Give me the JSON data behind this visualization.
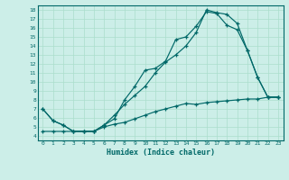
{
  "xlabel": "Humidex (Indice chaleur)",
  "bg_color": "#cceee8",
  "line_color": "#006868",
  "grid_color": "#aaddcc",
  "xlim": [
    -0.5,
    23.5
  ],
  "ylim": [
    3.5,
    18.5
  ],
  "xticks": [
    0,
    1,
    2,
    3,
    4,
    5,
    6,
    7,
    8,
    9,
    10,
    11,
    12,
    13,
    14,
    15,
    16,
    17,
    18,
    19,
    20,
    21,
    22,
    23
  ],
  "yticks": [
    4,
    5,
    6,
    7,
    8,
    9,
    10,
    11,
    12,
    13,
    14,
    15,
    16,
    17,
    18
  ],
  "line1_x": [
    0,
    1,
    2,
    3,
    4,
    5,
    6,
    7,
    8,
    9,
    10,
    11,
    12,
    13,
    14,
    15,
    16,
    17,
    18,
    19,
    20,
    21,
    22,
    23
  ],
  "line1_y": [
    7.0,
    5.7,
    5.2,
    4.5,
    4.5,
    4.5,
    5.2,
    6.3,
    7.5,
    8.5,
    9.5,
    11.0,
    12.2,
    13.0,
    14.0,
    15.5,
    18.0,
    17.7,
    17.5,
    16.5,
    13.5,
    10.5,
    8.3,
    8.3
  ],
  "line2_x": [
    0,
    1,
    2,
    3,
    4,
    5,
    6,
    7,
    8,
    9,
    10,
    11,
    12,
    13,
    14,
    15,
    16,
    17,
    18,
    19,
    20,
    21,
    22,
    23
  ],
  "line2_y": [
    7.0,
    5.7,
    5.2,
    4.5,
    4.5,
    4.5,
    5.2,
    5.9,
    8.0,
    9.5,
    11.3,
    11.5,
    12.3,
    14.7,
    15.0,
    16.2,
    17.8,
    17.6,
    16.3,
    15.8,
    13.5,
    10.5,
    8.3,
    8.3
  ],
  "line3_x": [
    0,
    1,
    2,
    3,
    4,
    5,
    6,
    7,
    8,
    9,
    10,
    11,
    12,
    13,
    14,
    15,
    16,
    17,
    18,
    19,
    20,
    21,
    22,
    23
  ],
  "line3_y": [
    4.5,
    4.5,
    4.5,
    4.5,
    4.5,
    4.5,
    5.0,
    5.3,
    5.5,
    5.9,
    6.3,
    6.7,
    7.0,
    7.3,
    7.6,
    7.5,
    7.7,
    7.8,
    7.9,
    8.0,
    8.1,
    8.1,
    8.3,
    8.3
  ]
}
